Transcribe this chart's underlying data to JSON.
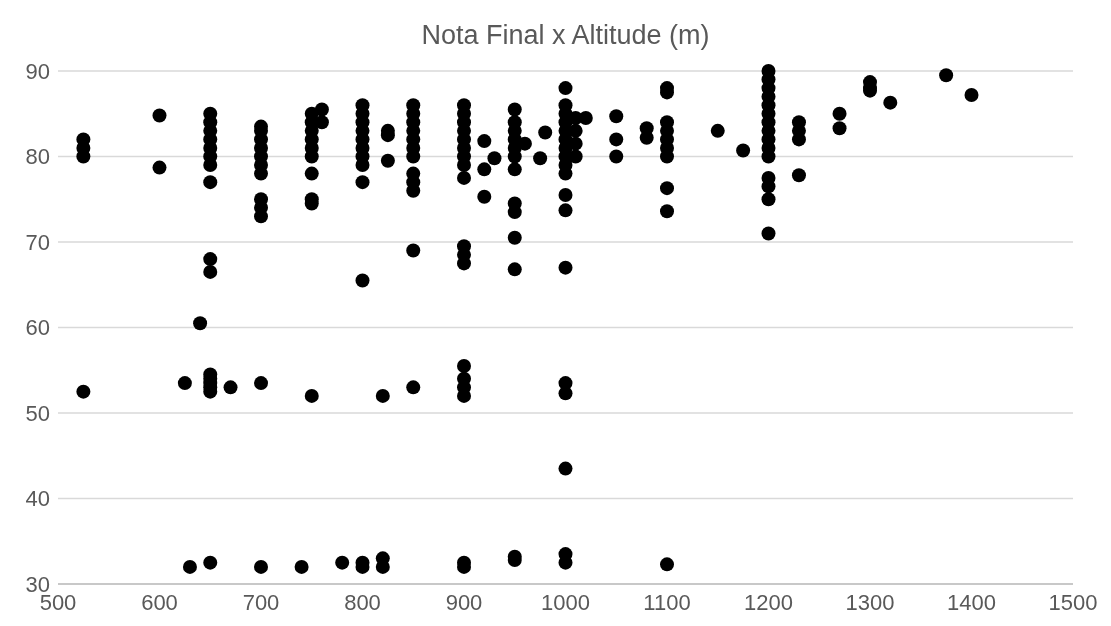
{
  "chart_data": {
    "type": "scatter",
    "title": "Nota Final x Altitude (m)",
    "xlim": [
      500,
      1500
    ],
    "xticks": [
      500,
      600,
      700,
      800,
      900,
      1000,
      1100,
      1200,
      1300,
      1400,
      1500
    ],
    "ylim": [
      30,
      90
    ],
    "yticks": [
      30,
      40,
      50,
      60,
      70,
      80,
      90
    ],
    "grid": "y",
    "marker": "circle",
    "series": [
      {
        "color": "#000000",
        "x": [
          525,
          525,
          525,
          525,
          600,
          600,
          625,
          630,
          640,
          650,
          650,
          650,
          650,
          650,
          650,
          650,
          650,
          650,
          650,
          650,
          650,
          650,
          650,
          650,
          650,
          670,
          700,
          700,
          700,
          700,
          700,
          700,
          700,
          700,
          700,
          700,
          700,
          700,
          740,
          750,
          750,
          750,
          750,
          750,
          750,
          750,
          750,
          750,
          750,
          760,
          760,
          780,
          800,
          800,
          800,
          800,
          800,
          800,
          800,
          800,
          800,
          800,
          800,
          800,
          820,
          820,
          820,
          825,
          825,
          825,
          850,
          850,
          850,
          850,
          850,
          850,
          850,
          850,
          850,
          850,
          850,
          850,
          900,
          900,
          900,
          900,
          900,
          900,
          900,
          900,
          900,
          900,
          900,
          900,
          900,
          900,
          900,
          900,
          900,
          900,
          920,
          920,
          920,
          930,
          950,
          950,
          950,
          950,
          950,
          950,
          950,
          950,
          950,
          950,
          950,
          950,
          950,
          960,
          975,
          980,
          1000,
          1000,
          1000,
          1000,
          1000,
          1000,
          1000,
          1000,
          1000,
          1000,
          1000,
          1000,
          1000,
          1000,
          1000,
          1000,
          1000,
          1000,
          1010,
          1010,
          1010,
          1010,
          1020,
          1050,
          1050,
          1050,
          1080,
          1080,
          1100,
          1100,
          1100,
          1100,
          1100,
          1100,
          1100,
          1100,
          1100,
          1100,
          1150,
          1175,
          1200,
          1200,
          1200,
          1200,
          1200,
          1200,
          1200,
          1200,
          1200,
          1200,
          1200,
          1200,
          1200,
          1200,
          1200,
          1230,
          1230,
          1230,
          1230,
          1270,
          1270,
          1300,
          1300,
          1300,
          1320,
          1375,
          1400
        ],
        "values": [
          80,
          81,
          82,
          52.5,
          78.7,
          84.8,
          53.5,
          32,
          60.5,
          77,
          79,
          80,
          81,
          82,
          83,
          84,
          85,
          68,
          66.5,
          52.5,
          53,
          53.5,
          54,
          54.5,
          32.5,
          53,
          73,
          74,
          75,
          78,
          79,
          80,
          81,
          82,
          83,
          83.5,
          53.5,
          32,
          32,
          74.5,
          75,
          78,
          80,
          81,
          82,
          83,
          84,
          85,
          52,
          85.5,
          84,
          32.5,
          65.5,
          77,
          79,
          80,
          81,
          82,
          83,
          84,
          85,
          86,
          32,
          32.5,
          52,
          32,
          33,
          79.5,
          82.5,
          83,
          76,
          77,
          78,
          80,
          81,
          82,
          83,
          84,
          85,
          86,
          69,
          53,
          77.5,
          79,
          80,
          81,
          82,
          83,
          84,
          85,
          86,
          67.5,
          68.5,
          69.5,
          55.5,
          52,
          53,
          54,
          32,
          32.5,
          75.3,
          78.5,
          81.8,
          79.8,
          78.5,
          80,
          81,
          82,
          83,
          84,
          85.5,
          73.5,
          74.5,
          70.5,
          66.8,
          32.8,
          33.2,
          81.5,
          79.8,
          82.8,
          78,
          79,
          80,
          81,
          82,
          83,
          84,
          85,
          86,
          88,
          75.5,
          73.7,
          67,
          53.5,
          52.3,
          43.5,
          32.5,
          33.5,
          80,
          81.5,
          83,
          84.5,
          84.5,
          84.7,
          82,
          80,
          83.3,
          82.2,
          80,
          81,
          82,
          83,
          84,
          87.5,
          88,
          76.3,
          73.6,
          32.3,
          83,
          80.7,
          71,
          75,
          76.5,
          77.5,
          80,
          81,
          82,
          83,
          84,
          85,
          86,
          87,
          88,
          89,
          90,
          77.8,
          82,
          83,
          84,
          83.3,
          85,
          88,
          88.7,
          87.7,
          86.3,
          89.5,
          87.2
        ]
      }
    ]
  }
}
